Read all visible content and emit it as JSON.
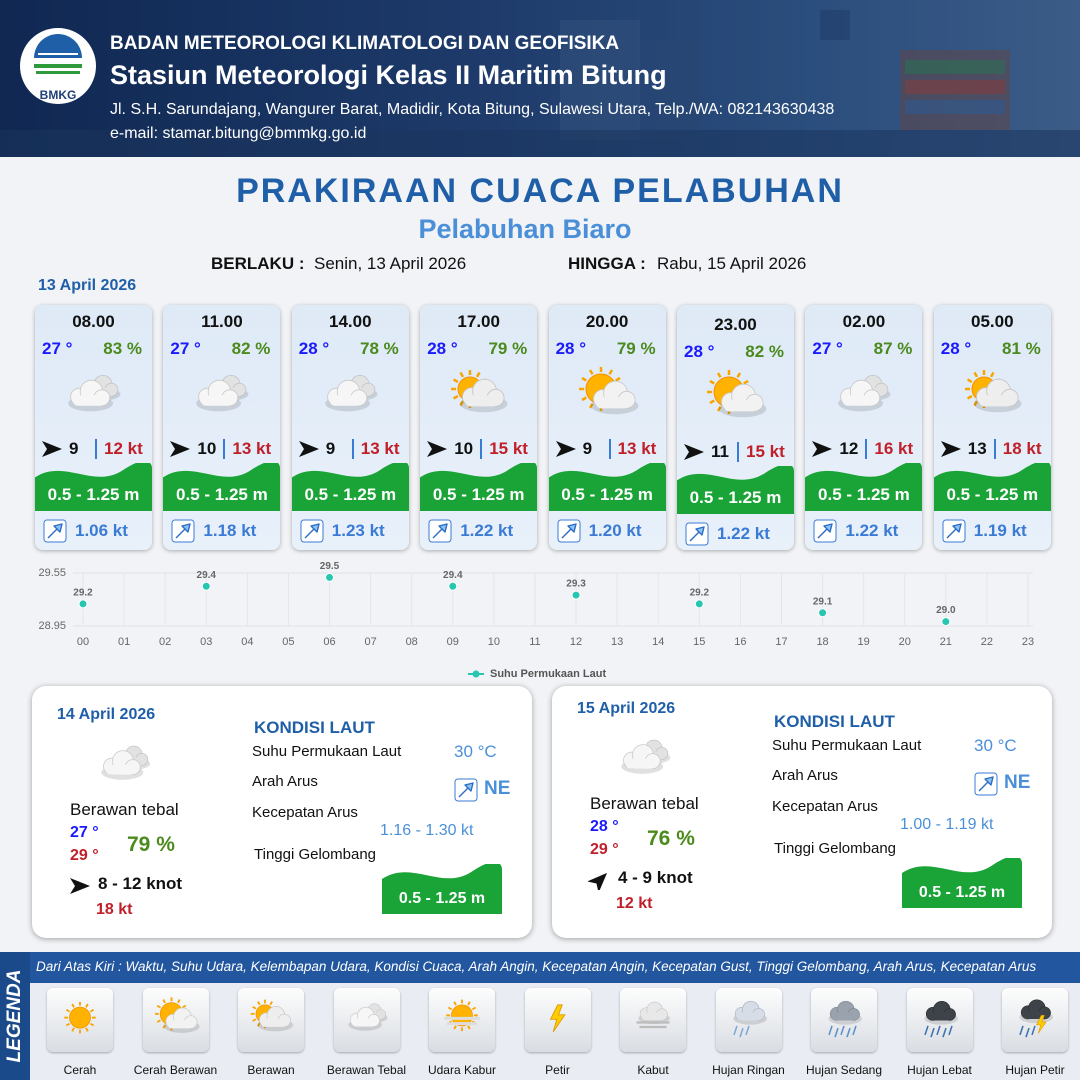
{
  "header": {
    "logo": "BMKG",
    "agency": "BADAN METEOROLOGI KLIMATOLOGI DAN GEOFISIKA",
    "station": "Stasiun Meteorologi Kelas II Maritim Bitung",
    "address": "Jl. S.H. Sarundajang, Wangurer Barat, Madidir, Kota Bitung, Sulawesi Utara, Telp./WA: 082143630438",
    "email": "e-mail: stamar.bitung@bmmkg.go.id"
  },
  "title": "PRAKIRAAN CUACA PELABUHAN",
  "subtitle": "Pelabuhan Biaro",
  "validity": {
    "from_label": "BERLAKU :",
    "from": "Senin, 13 April 2026",
    "to_label": "HINGGA :",
    "to": "Rabu, 15 April 2026"
  },
  "day1": {
    "date": "13 April 2026",
    "forecasts": [
      {
        "time": "08.00",
        "temp": "27 °",
        "humidity": "83 %",
        "wind": "9",
        "gust": "12 kt",
        "wave": "0.5 - 1.25 m",
        "current": "1.06 kt"
      },
      {
        "time": "11.00",
        "temp": "27 °",
        "humidity": "82 %",
        "wind": "10",
        "gust": "13 kt",
        "wave": "0.5 - 1.25 m",
        "current": "1.18 kt"
      },
      {
        "time": "14.00",
        "temp": "28 °",
        "humidity": "78 %",
        "wind": "9",
        "gust": "13 kt",
        "wave": "0.5 - 1.25 m",
        "current": "1.23 kt"
      },
      {
        "time": "17.00",
        "temp": "28 °",
        "humidity": "79 %",
        "wind": "10",
        "gust": "15 kt",
        "wave": "0.5 - 1.25 m",
        "current": "1.22 kt"
      },
      {
        "time": "20.00",
        "temp": "28 °",
        "humidity": "79 %",
        "wind": "9",
        "gust": "13 kt",
        "wave": "0.5 - 1.25 m",
        "current": "1.20 kt"
      },
      {
        "time": "23.00",
        "temp": "28 °",
        "humidity": "82 %",
        "wind": "11",
        "gust": "15 kt",
        "wave": "0.5 - 1.25 m",
        "current": "1.22 kt"
      },
      {
        "time": "02.00",
        "temp": "27 °",
        "humidity": "87 %",
        "wind": "12",
        "gust": "16 kt",
        "wave": "0.5 - 1.25 m",
        "current": "1.22 kt"
      },
      {
        "time": "05.00",
        "temp": "28 °",
        "humidity": "81 %",
        "wind": "13",
        "gust": "18 kt",
        "wave": "0.5 - 1.25 m",
        "current": "1.19 kt"
      }
    ]
  },
  "chart_data": {
    "type": "scatter",
    "x": [
      0,
      3,
      6,
      9,
      12,
      15,
      18,
      21
    ],
    "series": [
      {
        "name": "Suhu Permukaan Laut",
        "color": "#26c6b0",
        "values": [
          29.2,
          29.4,
          29.5,
          29.4,
          29.3,
          29.2,
          29.1,
          29.0
        ],
        "value_labels": [
          "29.2",
          "29.4",
          "29.5",
          "29.4",
          "29.3",
          "29.2",
          "29.1",
          "29.0"
        ]
      }
    ],
    "xlim": [
      0,
      23
    ],
    "ylim": [
      28.95,
      29.55
    ],
    "xticks": [
      {
        "value": 0,
        "label": "00"
      },
      {
        "value": 1,
        "label": "01"
      },
      {
        "value": 2,
        "label": "02"
      },
      {
        "value": 3,
        "label": "03"
      },
      {
        "value": 4,
        "label": "04"
      },
      {
        "value": 5,
        "label": "05"
      },
      {
        "value": 6,
        "label": "06"
      },
      {
        "value": 7,
        "label": "07"
      },
      {
        "value": 8,
        "label": "08"
      },
      {
        "value": 9,
        "label": "09"
      },
      10,
      11,
      12,
      13,
      14,
      15,
      16,
      17,
      18,
      19,
      20,
      21,
      22,
      23
    ],
    "yticks": [
      28.95,
      29.55
    ],
    "grid": true
  },
  "days": [
    {
      "date": "14 April 2026",
      "condition": "Berawan tebal",
      "temp_min": "27 °",
      "temp_max": "29 °",
      "humidity": "79 %",
      "wind": "8  - 12 knot",
      "gust": "18 kt",
      "sea": {
        "heading": "KONDISI LAUT",
        "sst_label": "Suhu Permukaan Laut",
        "sst": "30 °C",
        "direction_label": "Arah Arus",
        "direction": "NE",
        "speed_label": "Kecepatan Arus",
        "speed": "1.16 - 1.30 kt",
        "wave_label": "Tinggi Gelombang",
        "wave": "0.5 - 1.25 m"
      }
    },
    {
      "date": "15 April 2026",
      "condition": "Berawan tebal",
      "temp_min": "28 °",
      "temp_max": "29 °",
      "humidity": "76 %",
      "wind": "4 - 9 knot",
      "gust": "12 kt",
      "sea": {
        "heading": "KONDISI LAUT",
        "sst_label": "Suhu Permukaan Laut",
        "sst": "30 °C",
        "direction_label": "Arah Arus",
        "direction": "NE",
        "speed_label": "Kecepatan Arus",
        "speed": "1.00 - 1.19 kt",
        "wave_label": "Tinggi Gelombang",
        "wave": "0.5 - 1.25 m"
      }
    }
  ],
  "legend": {
    "title": "LEGENDA",
    "description": "Dari Atas Kiri : Waktu, Suhu Udara, Kelembapan Udara, Kondisi Cuaca, Arah Angin, Kecepatan Angin, Kecepatan Gust, Tinggi Gelombang, Arah Arus, Kecepatan Arus",
    "items": [
      "Cerah",
      "Cerah Berawan",
      "Berawan",
      "Berawan Tebal",
      "Udara Kabur",
      "Petir",
      "Kabut",
      "Hujan Ringan",
      "Hujan Sedang",
      "Hujan Lebat",
      "Hujan Petir"
    ]
  }
}
